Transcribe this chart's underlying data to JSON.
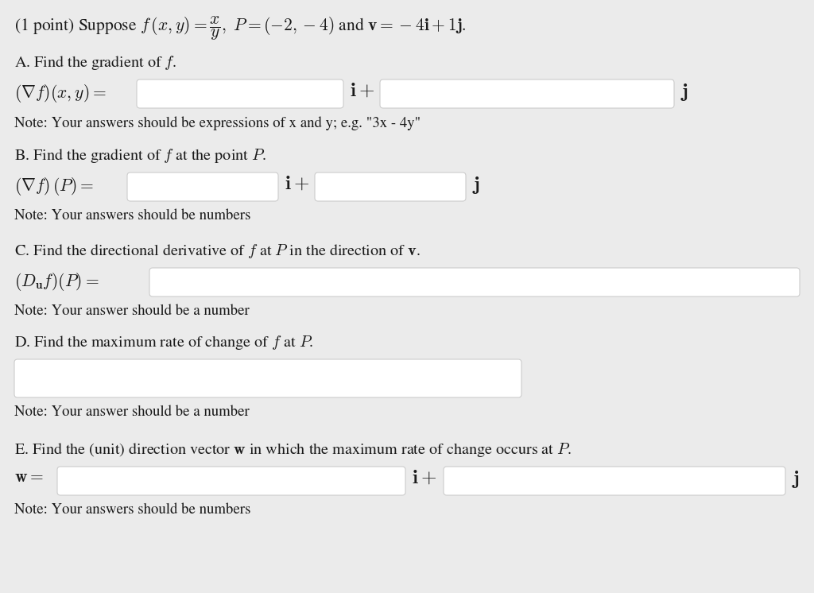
{
  "bg_color": "#ebebeb",
  "box_bg": "#ffffff",
  "box_edge": "#cccccc",
  "text_color": "#1a1a1a",
  "title": "(1 point) Suppose $f\\,(x, y) = \\dfrac{x}{y},\\; P = (-2, -4)$ and $\\mathbf{v} = -4\\mathbf{i} + 1\\mathbf{j}$.",
  "A_label": "A. Find the gradient of $f$.",
  "A_eq": "$(\\nabla f)(x, y) =$",
  "A_i": "$\\mathbf{i}+$",
  "A_j": "$\\mathbf{j}$",
  "A_note": "Note: Your answers should be expressions of x and y; e.g. \"3x - 4y\"",
  "B_label": "B. Find the gradient of $f$ at the point $P$.",
  "B_eq": "$(\\nabla f)\\,(P) =$",
  "B_i": "$\\mathbf{i}+$",
  "B_j": "$\\mathbf{j}$",
  "B_note": "Note: Your answers should be numbers",
  "C_label": "C. Find the directional derivative of $f$ at $P$ in the direction of $\\mathbf{v}$.",
  "C_eq": "$(D_{\\mathbf{u}}f)(P) =$",
  "C_note": "Note: Your answer should be a number",
  "D_label": "D. Find the maximum rate of change of $f$ at $P$.",
  "D_note": "Note: Your answer should be a number",
  "E_label": "E. Find the (unit) direction vector $\\mathbf{w}$ in which the maximum rate of change occurs at $P$.",
  "E_eq": "$\\mathbf{w} =$",
  "E_i": "$\\mathbf{i}+$",
  "E_j": "$\\mathbf{j}$",
  "E_note": "Note: Your answers should be numbers",
  "fs_title": 15.5,
  "fs_label": 14.5,
  "fs_eq": 15.5,
  "fs_ij": 16,
  "fs_note": 13.5
}
